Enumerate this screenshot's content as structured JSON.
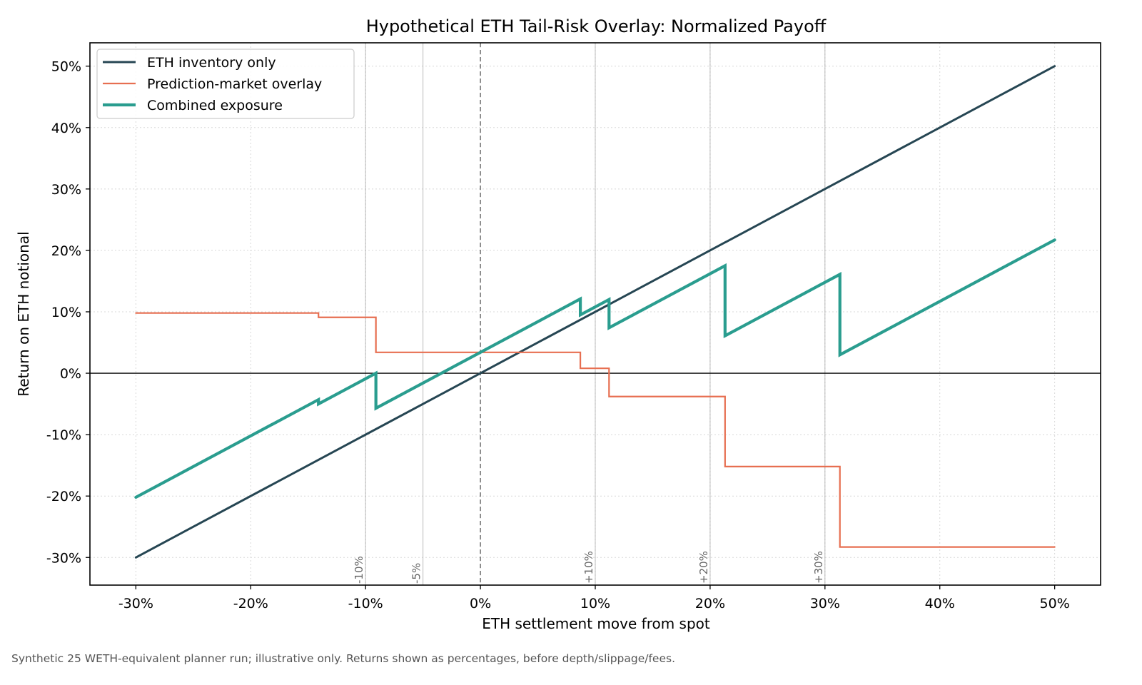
{
  "chart_data": {
    "type": "line",
    "title": "Hypothetical ETH Tail-Risk Overlay: Normalized Payoff",
    "xlabel": "ETH settlement move from spot",
    "ylabel": "Return on ETH notional",
    "xlim": [
      -34,
      54
    ],
    "ylim": [
      -34.5,
      53.8
    ],
    "x_ticks": [
      -30,
      -20,
      -10,
      0,
      10,
      20,
      30,
      40,
      50
    ],
    "x_tick_labels": [
      "-30%",
      "-20%",
      "-10%",
      "0%",
      "10%",
      "20%",
      "30%",
      "40%",
      "50%"
    ],
    "y_ticks": [
      -30,
      -20,
      -10,
      0,
      10,
      20,
      30,
      40,
      50
    ],
    "y_tick_labels": [
      "-30%",
      "-20%",
      "-10%",
      "0%",
      "10%",
      "20%",
      "30%",
      "40%",
      "50%"
    ],
    "grid": true,
    "legend_position": "top-left",
    "zero_line_y": 0,
    "zero_line_x": 0,
    "reference_lines": [
      {
        "x": -10,
        "label": "-10%"
      },
      {
        "x": -5,
        "label": "-5%"
      },
      {
        "x": 10,
        "label": "+10%"
      },
      {
        "x": 20,
        "label": "+20%"
      },
      {
        "x": 30,
        "label": "+30%"
      }
    ],
    "series": [
      {
        "name": "ETH inventory only",
        "color": "#264653",
        "points": [
          [
            -30,
            -30
          ],
          [
            50,
            50
          ]
        ]
      },
      {
        "name": "Prediction-market overlay",
        "color": "#e76f51",
        "points": [
          [
            -30,
            9.8
          ],
          [
            -14.1,
            9.8
          ],
          [
            -14.1,
            9.1
          ],
          [
            -9.1,
            9.1
          ],
          [
            -9.1,
            3.4
          ],
          [
            8.7,
            3.4
          ],
          [
            8.7,
            0.8
          ],
          [
            11.2,
            0.8
          ],
          [
            11.2,
            -3.8
          ],
          [
            21.3,
            -3.8
          ],
          [
            21.3,
            -15.2
          ],
          [
            31.3,
            -15.2
          ],
          [
            31.3,
            -28.3
          ],
          [
            50,
            -28.3
          ]
        ]
      },
      {
        "name": "Combined exposure",
        "color": "#2a9d8f",
        "points": [
          [
            -30,
            -20.2
          ],
          [
            -14.1,
            -4.3
          ],
          [
            -14.1,
            -5.0
          ],
          [
            -9.1,
            0.0
          ],
          [
            -9.1,
            -5.7
          ],
          [
            8.7,
            12.1
          ],
          [
            8.7,
            9.5
          ],
          [
            11.2,
            12.0
          ],
          [
            11.2,
            7.4
          ],
          [
            21.3,
            17.5
          ],
          [
            21.3,
            6.1
          ],
          [
            31.3,
            16.1
          ],
          [
            31.3,
            3.0
          ],
          [
            50,
            21.7
          ]
        ]
      }
    ]
  },
  "footnote": "Synthetic 25 WETH-equivalent planner run; illustrative only. Returns shown as percentages, before depth/slippage/fees."
}
